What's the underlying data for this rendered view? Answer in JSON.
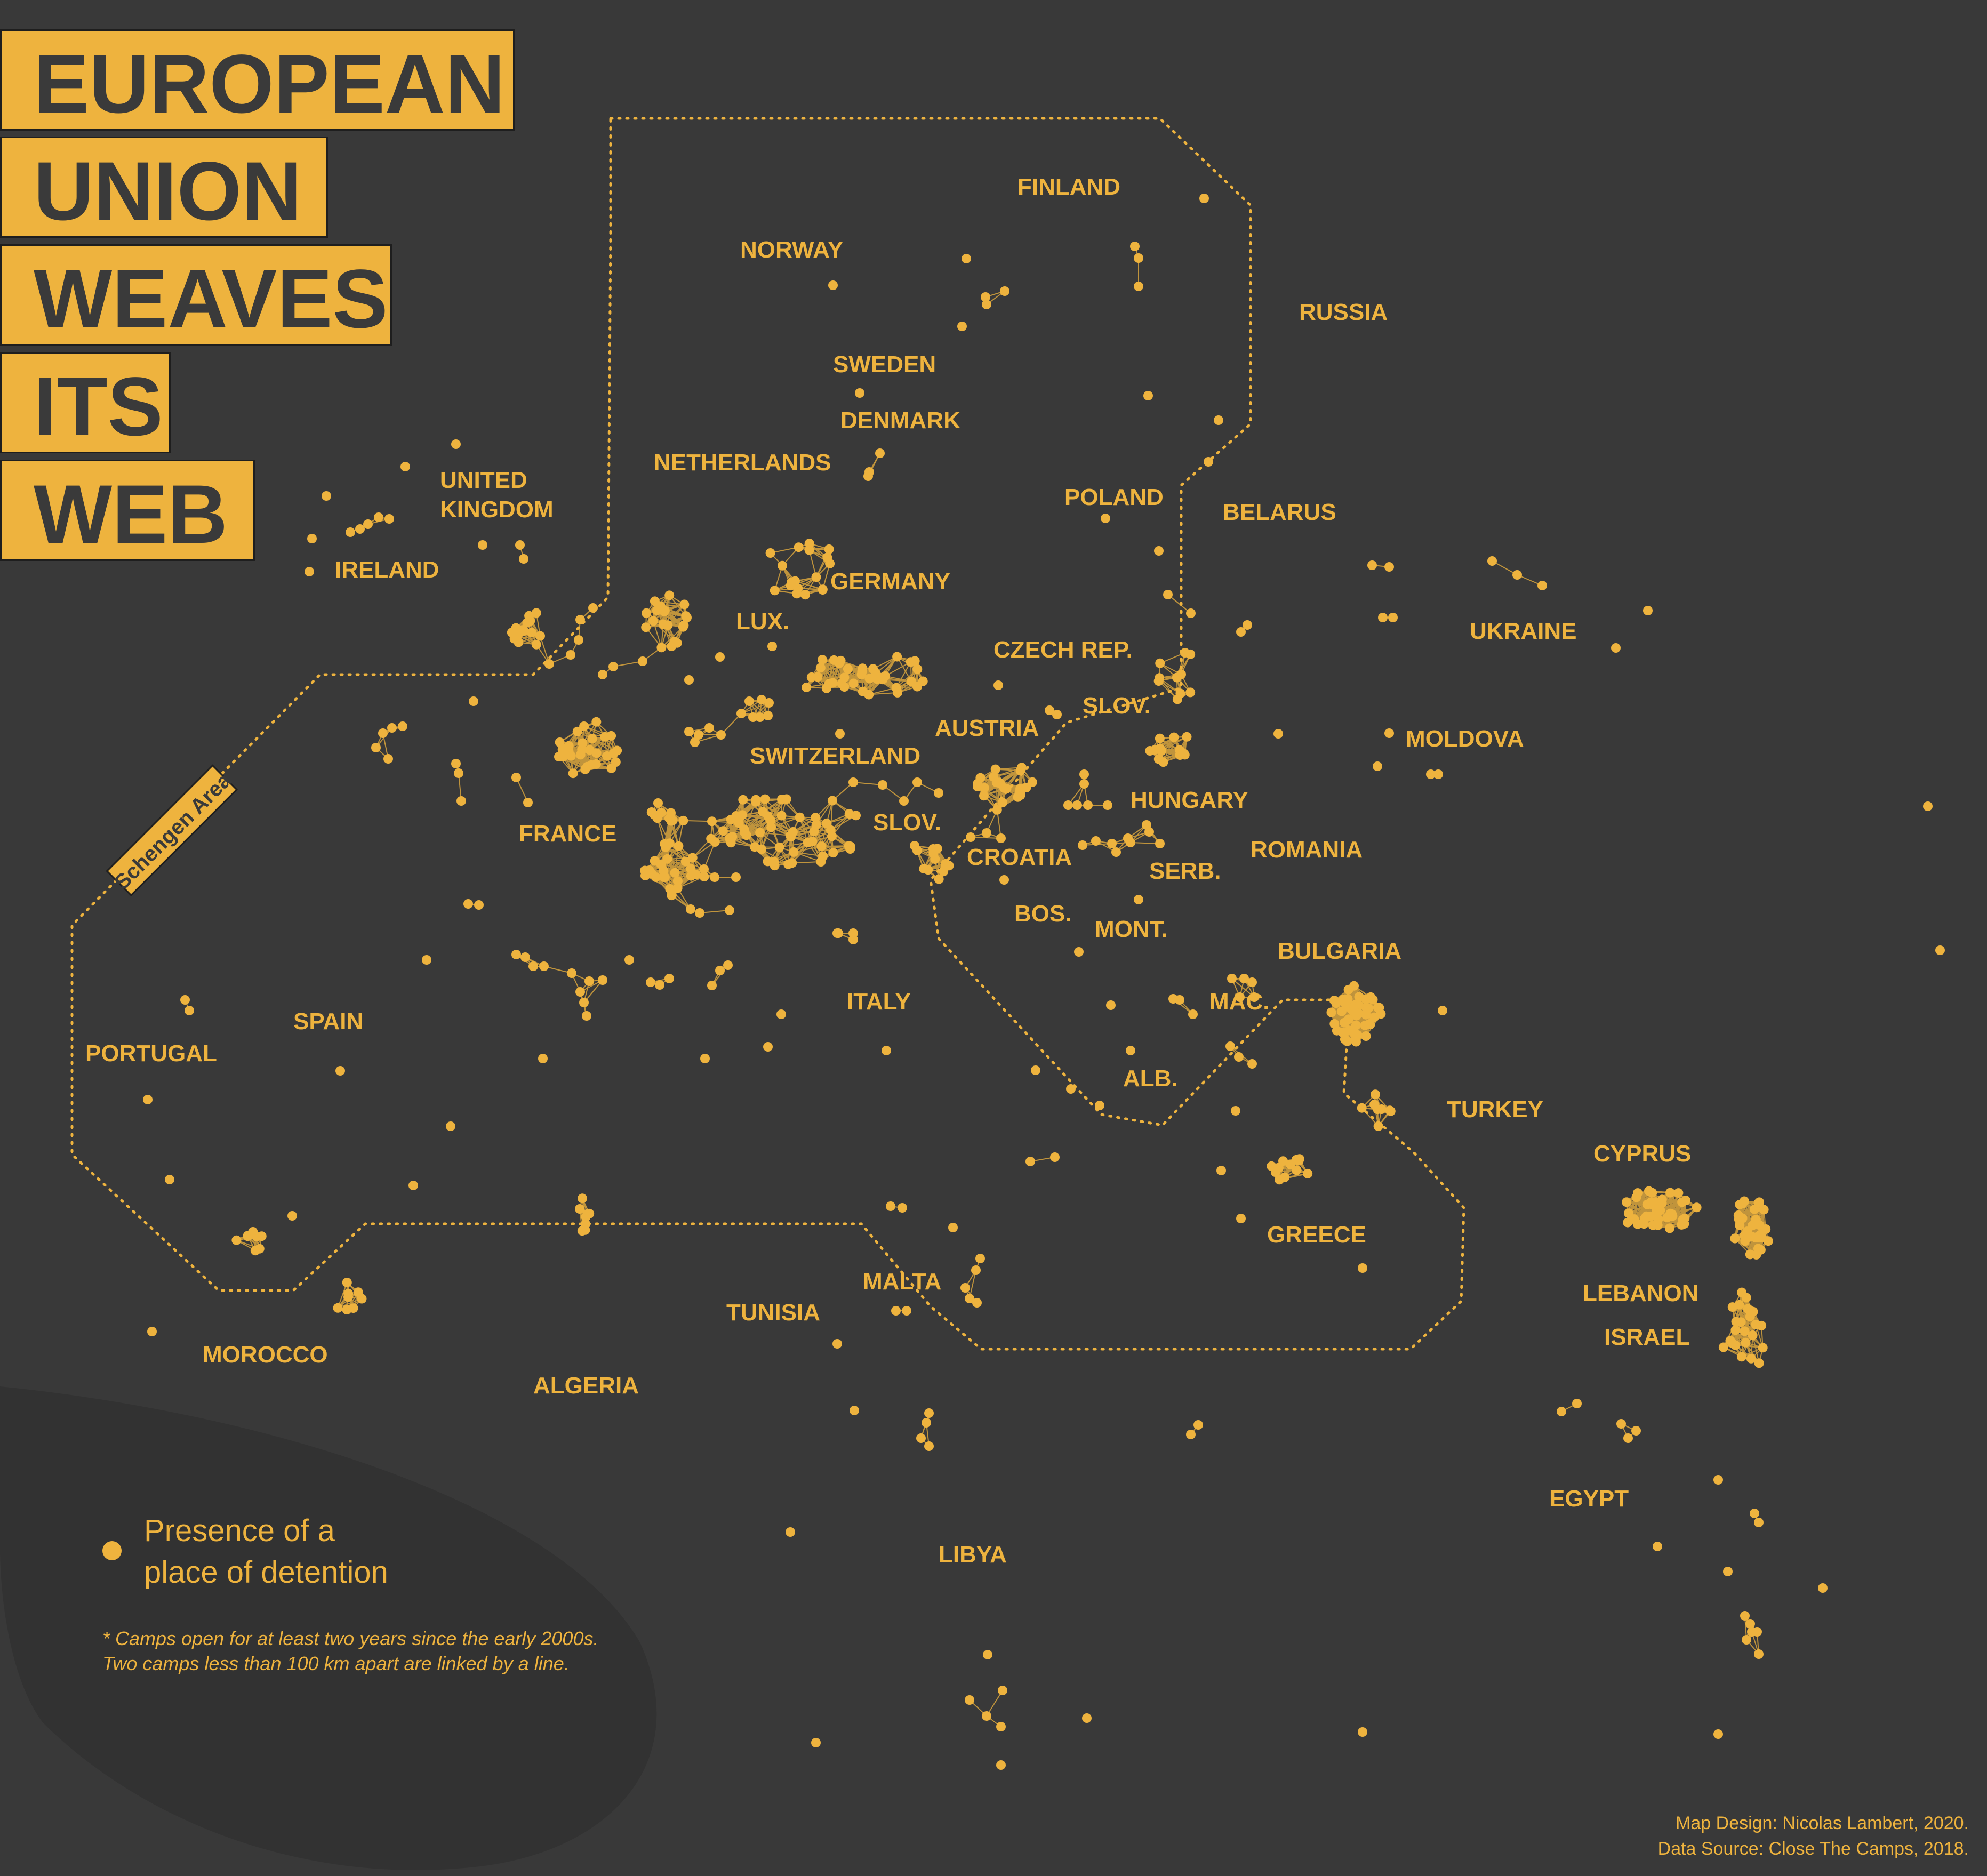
{
  "title": {
    "lines": [
      "EUROPEAN",
      "UNION",
      "WEAVES",
      "ITS",
      "WEB"
    ]
  },
  "colors": {
    "background": "#393939",
    "accent": "#eeb33e",
    "blob": "#323232",
    "title_text": "#3a3a3a"
  },
  "schengen_label": "Schengen Area",
  "countries": {
    "finland": "FINLAND",
    "norway": "NORWAY",
    "sweden": "SWEDEN",
    "denmark": "DENMARK",
    "russia": "RUSSIA",
    "united_kingdom_1": "UNITED",
    "united_kingdom_2": "KINGDOM",
    "ireland": "IRELAND",
    "netherlands": "NETHERLANDS",
    "poland": "POLAND",
    "belarus": "BELARUS",
    "germany": "GERMANY",
    "lux": "LUX.",
    "ukraine": "UKRAINE",
    "czech": "CZECH REP.",
    "slov_sk": "SLOV.",
    "austria": "AUSTRIA",
    "moldova": "MOLDOVA",
    "switzerland": "SWITZERLAND",
    "hungary": "HUNGARY",
    "france": "FRANCE",
    "slov_si": "SLOV.",
    "croatia": "CROATIA",
    "romania": "ROMANIA",
    "serb": "SERB.",
    "bos": "BOS.",
    "mont": "MONT.",
    "bulgaria": "BULGARIA",
    "portugal": "PORTUGAL",
    "spain": "SPAIN",
    "italy": "ITALY",
    "mac": "MAC.",
    "alb": "ALB.",
    "turkey": "TURKEY",
    "cyprus": "CYPRUS",
    "greece": "GREECE",
    "lebanon": "LEBANON",
    "malta": "MALTA",
    "tunisia": "TUNISIA",
    "israel": "ISRAEL",
    "morocco": "MOROCCO",
    "algeria": "ALGERIA",
    "egypt": "EGYPT",
    "libya": "LIBYA"
  },
  "legend": {
    "line1": "Presence of a",
    "line2": "place of detention"
  },
  "note": {
    "line1": "* Camps open for at least two years since the early 2000s.",
    "line2": "Two camps less than 100 km apart are linked by a line."
  },
  "credits": {
    "design": "Map Design: Nicolas Lambert, 2020.",
    "source": "Data Source: Close The Camps, 2018."
  }
}
